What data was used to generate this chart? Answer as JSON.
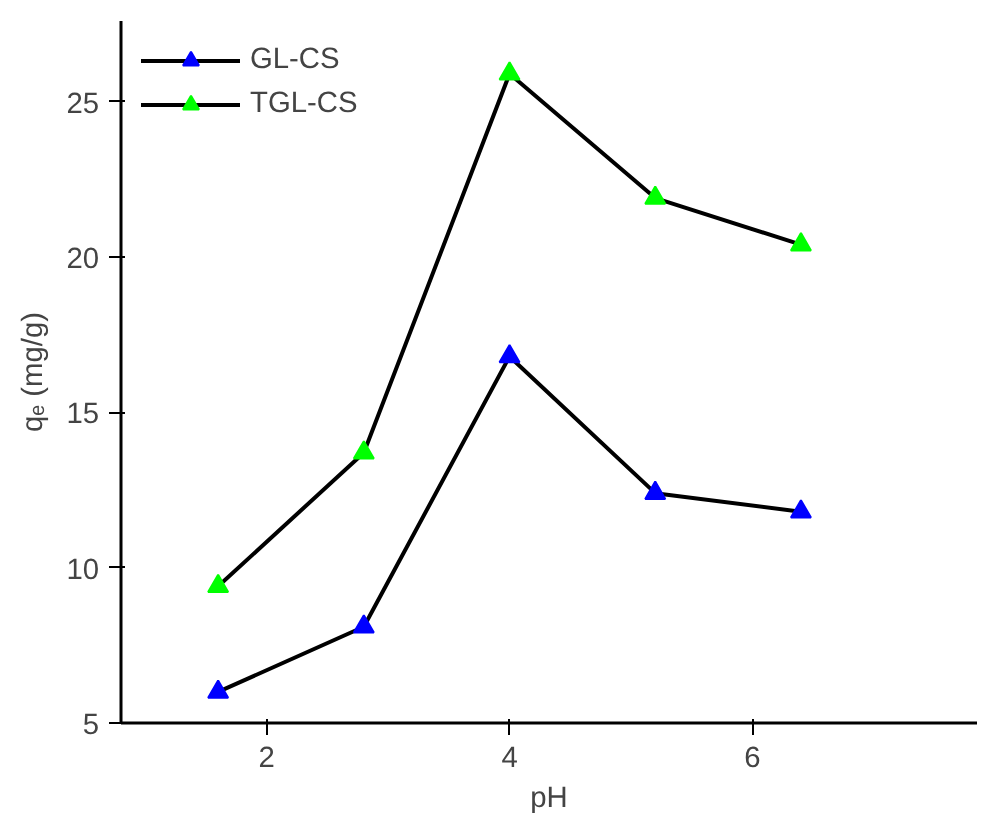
{
  "chart_data": {
    "type": "line",
    "xlabel": "pH",
    "ylabel": "qₑ (mg/g)",
    "x": [
      1.6,
      2.8,
      4.0,
      5.2,
      6.4
    ],
    "series": [
      {
        "name": "GL-CS",
        "color": "#0000ff",
        "values": [
          6.0,
          8.1,
          16.8,
          12.4,
          11.8
        ]
      },
      {
        "name": "TGL-CS",
        "color": "#00ff00",
        "values": [
          9.4,
          13.7,
          25.9,
          21.9,
          20.4
        ]
      }
    ],
    "xlim": [
      0.8,
      7.85
    ],
    "ylim": [
      5,
      27.6
    ],
    "xticks": [
      2,
      4,
      6
    ],
    "yticks": [
      5,
      10,
      15,
      20,
      25
    ],
    "marker": "triangle",
    "line_style": "solid",
    "legend": "top left",
    "grid": false
  }
}
